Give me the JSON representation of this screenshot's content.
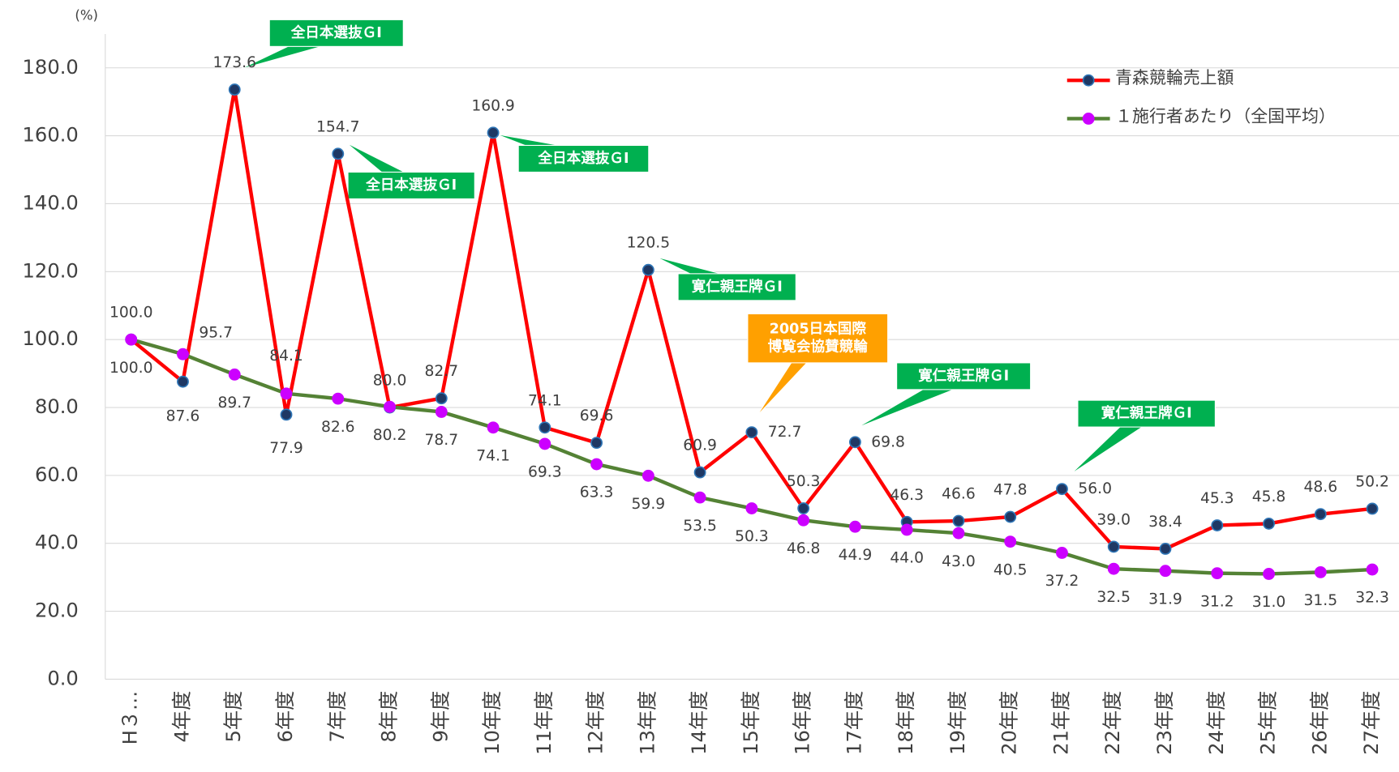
{
  "chart_data": {
    "type": "line",
    "y_unit_label": "(%)",
    "categories": [
      "H３…",
      "4年度",
      "5年度",
      "6年度",
      "7年度",
      "8年度",
      "9年度",
      "10年度",
      "11年度",
      "12年度",
      "13年度",
      "14年度",
      "15年度",
      "16年度",
      "17年度",
      "18年度",
      "19年度",
      "20年度",
      "21年度",
      "22年度",
      "23年度",
      "24年度",
      "25年度",
      "26年度",
      "27年度"
    ],
    "series": [
      {
        "name": "青森競輪売上額",
        "color": "#ff0000",
        "marker_color": "#1f3864",
        "values": [
          100.0,
          87.6,
          173.6,
          77.9,
          154.7,
          80.0,
          82.7,
          160.9,
          74.1,
          69.6,
          120.5,
          60.9,
          72.7,
          50.3,
          69.8,
          46.3,
          46.6,
          47.8,
          56.0,
          39.0,
          38.4,
          45.3,
          45.8,
          48.6,
          50.2
        ],
        "value_labels": [
          "100.0",
          "87.6",
          "173.6",
          "77.9",
          "154.7",
          "80.0",
          "82.7",
          "160.9",
          "74.1",
          "69.6",
          "120.5",
          "60.9",
          "72.7",
          "50.3",
          "69.8",
          "46.3",
          "46.6",
          "47.8",
          "56.0",
          "39.0",
          "38.4",
          "45.3",
          "45.8",
          "48.6",
          "50.2"
        ]
      },
      {
        "name": "１施行者あたり（全国平均）",
        "color": "#548235",
        "marker_color": "#cc00ff",
        "values": [
          100.0,
          95.7,
          89.7,
          84.1,
          82.6,
          80.2,
          78.7,
          74.1,
          69.3,
          63.3,
          59.9,
          53.5,
          50.3,
          46.8,
          44.9,
          44.0,
          43.0,
          40.5,
          37.2,
          32.5,
          31.9,
          31.2,
          31.0,
          31.5,
          32.3
        ],
        "value_labels": [
          "100.0",
          "95.7",
          "89.7",
          "84.1",
          "82.6",
          "80.2",
          "78.7",
          "74.1",
          "69.3",
          "63.3",
          "59.9",
          "53.5",
          "50.3",
          "46.8",
          "44.9",
          "44.0",
          "43.0",
          "40.5",
          "37.2",
          "32.5",
          "31.9",
          "31.2",
          "31.0",
          "31.5",
          "32.3"
        ]
      }
    ],
    "ylim": [
      0,
      180
    ],
    "yticks": [
      {
        "value": 0,
        "label": "0.0"
      },
      {
        "value": 20,
        "label": "20.0"
      },
      {
        "value": 40,
        "label": "40.0"
      },
      {
        "value": 60,
        "label": "60.0"
      },
      {
        "value": 80,
        "label": "80.0"
      },
      {
        "value": 100,
        "label": "100.0"
      },
      {
        "value": 120,
        "label": "120.0"
      },
      {
        "value": 140,
        "label": "140.0"
      },
      {
        "value": 160,
        "label": "160.0"
      },
      {
        "value": 180,
        "label": "180.0"
      }
    ],
    "grid": true,
    "legend": "top-right",
    "annotations": [
      {
        "lines": [
          "全日本選抜ＧⅠ"
        ],
        "color": "#00b050"
      },
      {
        "lines": [
          "全日本選抜ＧⅠ"
        ],
        "color": "#00b050"
      },
      {
        "lines": [
          "全日本選抜ＧⅠ"
        ],
        "color": "#00b050"
      },
      {
        "lines": [
          "寛仁親王牌ＧⅠ"
        ],
        "color": "#00b050"
      },
      {
        "lines": [
          "2005日本国際",
          "博覧会協賛競輪"
        ],
        "color": "#ffa000"
      },
      {
        "lines": [
          "寛仁親王牌ＧⅠ"
        ],
        "color": "#00b050"
      },
      {
        "lines": [
          "寛仁親王牌ＧⅠ"
        ],
        "color": "#00b050"
      }
    ]
  }
}
